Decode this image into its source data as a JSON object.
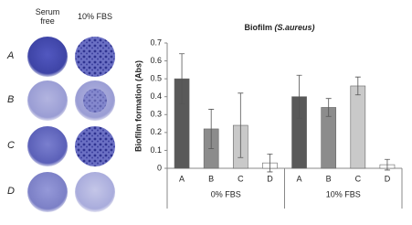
{
  "panel": {
    "column_labels": [
      "Serum free",
      "10% FBS"
    ],
    "row_labels": [
      "A",
      "B",
      "C",
      "D"
    ]
  },
  "chart_data": {
    "type": "bar",
    "title": "Biofilm",
    "title_italic": "(S.aureus)",
    "y_label": "Biofilm formation (Abs)",
    "ylim": [
      0,
      0.7
    ],
    "yticks": [
      0,
      0.1,
      0.2,
      0.3,
      0.4,
      0.5,
      0.6,
      0.7
    ],
    "colors": [
      "#595959",
      "#8c8c8c",
      "#c9c9c9",
      "#ffffff"
    ],
    "groups": [
      {
        "name": "0% FBS",
        "categories": [
          "A",
          "B",
          "C",
          "D"
        ],
        "values": [
          0.5,
          0.22,
          0.24,
          0.03
        ],
        "errors": [
          0.14,
          0.11,
          0.18,
          0.05
        ]
      },
      {
        "name": "10% FBS",
        "categories": [
          "A",
          "B",
          "C",
          "D"
        ],
        "values": [
          0.4,
          0.34,
          0.46,
          0.02
        ],
        "errors": [
          0.12,
          0.05,
          0.05,
          0.03
        ]
      }
    ]
  }
}
